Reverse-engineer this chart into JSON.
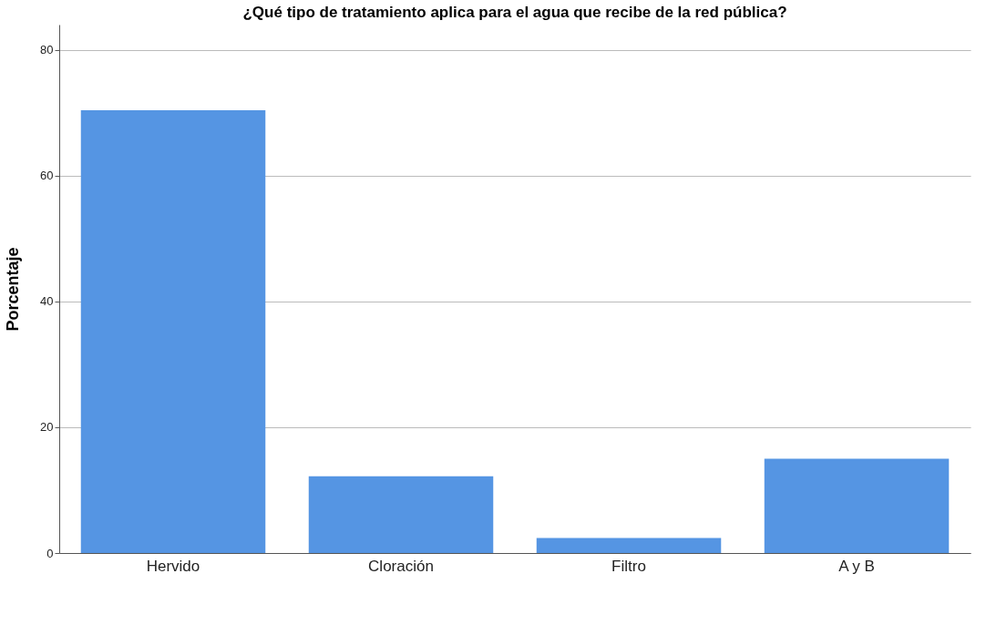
{
  "chart_data": {
    "type": "bar",
    "title": "¿Qué tipo de tratamiento aplica para el agua que recibe de la red pública?",
    "ylabel": "Porcentaje",
    "categories": [
      "Hervido",
      "Cloración",
      "Filtro",
      "A y B"
    ],
    "values": [
      70.4,
      12.2,
      2.4,
      15.0
    ],
    "color": "#5595e3",
    "ylim": [
      0,
      84
    ],
    "yticks": [
      0,
      20,
      40,
      60,
      80
    ],
    "grid": "y"
  }
}
